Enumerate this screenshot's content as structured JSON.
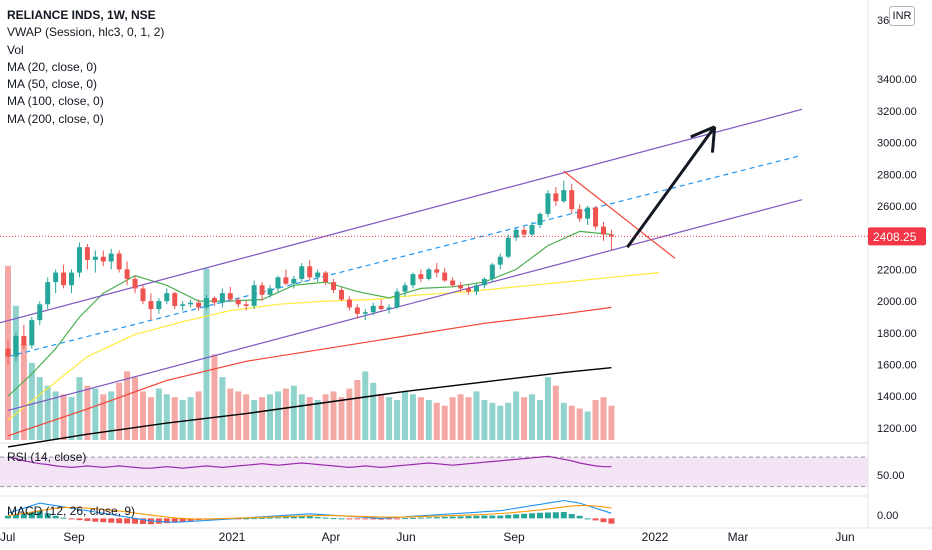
{
  "header": {
    "title": "RELIANCE INDS, 1W, NSE",
    "indicators": [
      "VWAP (Session, hlc3, 0, 1, 2)",
      "Vol",
      "MA (20, close, 0)",
      "MA (50, close, 0)",
      "MA (100, close, 0)",
      "MA (200, close, 0)"
    ],
    "currency": "INR",
    "top_tick_partial": "36"
  },
  "price_axis": {
    "ticks": [
      "3400.00",
      "3200.00",
      "3000.00",
      "2800.00",
      "2600.00",
      "2400.00",
      "2200.00",
      "2000.00",
      "1800.00",
      "1600.00",
      "1400.00",
      "1200.00"
    ],
    "last_price_label": "2408.25"
  },
  "time_axis": {
    "labels": [
      "Jul",
      "Sep",
      "2021",
      "Apr",
      "Jun",
      "Sep",
      "2022",
      "Mar",
      "Jun"
    ]
  },
  "panes": {
    "rsi_label": "RSI (14, close)",
    "rsi_tick": "50.00",
    "macd_label": "MACD (12, 26, close, 9)",
    "macd_tick": "0.00"
  },
  "colors": {
    "up": "#26a69a",
    "down": "#ef5350",
    "up_vol": "#8fd3cc",
    "down_vol": "#f4a8a6",
    "channel": "#7e57c2",
    "channel_mid": "#2196f3",
    "ma20": "#4caf50",
    "ma50": "#ffeb3b",
    "ma100": "#f44336",
    "ma200": "#000000",
    "rsi": "#9c27b0",
    "rsi_band": "#f3e5f5",
    "macd": "#2196f3",
    "signal": "#ff9800",
    "arrow": "#131722",
    "wedge": "#f44336",
    "price_label": "#f23645"
  },
  "chart_data": {
    "type": "candlestick",
    "title": "RELIANCE INDS, 1W, NSE",
    "ylim": [
      1080,
      3700
    ],
    "last_price": 2408.25,
    "candles": [
      [
        1700,
        1750,
        1600,
        1650
      ],
      [
        1650,
        1800,
        1620,
        1780
      ],
      [
        1780,
        1850,
        1700,
        1720
      ],
      [
        1720,
        1900,
        1700,
        1880
      ],
      [
        1880,
        2000,
        1850,
        1980
      ],
      [
        1980,
        2150,
        1950,
        2120
      ],
      [
        2120,
        2200,
        2050,
        2180
      ],
      [
        2180,
        2230,
        2080,
        2100
      ],
      [
        2100,
        2200,
        2050,
        2180
      ],
      [
        2180,
        2370,
        2150,
        2340
      ],
      [
        2340,
        2360,
        2200,
        2260
      ],
      [
        2260,
        2320,
        2180,
        2280
      ],
      [
        2280,
        2320,
        2220,
        2250
      ],
      [
        2250,
        2330,
        2200,
        2300
      ],
      [
        2300,
        2320,
        2180,
        2200
      ],
      [
        2200,
        2250,
        2100,
        2140
      ],
      [
        2140,
        2160,
        2050,
        2080
      ],
      [
        2080,
        2100,
        1980,
        2000
      ],
      [
        2000,
        2050,
        1880,
        1950
      ],
      [
        1950,
        2020,
        1920,
        2000
      ],
      [
        2000,
        2080,
        1980,
        2050
      ],
      [
        2050,
        2060,
        1950,
        1970
      ],
      [
        1970,
        2000,
        1940,
        1980
      ],
      [
        1980,
        2010,
        1960,
        1990
      ],
      [
        1990,
        2010,
        1940,
        1960
      ],
      [
        1960,
        2040,
        1950,
        2020
      ],
      [
        2020,
        2030,
        1970,
        1990
      ],
      [
        1990,
        2080,
        1960,
        2050
      ],
      [
        2050,
        2090,
        2000,
        2010
      ],
      [
        2010,
        2020,
        1960,
        1980
      ],
      [
        1980,
        2000,
        1940,
        1970
      ],
      [
        1970,
        2130,
        1950,
        2100
      ],
      [
        2100,
        2120,
        2000,
        2040
      ],
      [
        2040,
        2100,
        2020,
        2080
      ],
      [
        2080,
        2160,
        2050,
        2150
      ],
      [
        2150,
        2200,
        2100,
        2110
      ],
      [
        2110,
        2160,
        2080,
        2140
      ],
      [
        2140,
        2240,
        2120,
        2220
      ],
      [
        2220,
        2260,
        2130,
        2150
      ],
      [
        2150,
        2200,
        2120,
        2180
      ],
      [
        2180,
        2190,
        2100,
        2120
      ],
      [
        2120,
        2140,
        2050,
        2070
      ],
      [
        2070,
        2090,
        2000,
        2010
      ],
      [
        2010,
        2030,
        1940,
        1960
      ],
      [
        1960,
        1980,
        1890,
        1920
      ],
      [
        1920,
        1950,
        1880,
        1930
      ],
      [
        1930,
        1990,
        1910,
        1970
      ],
      [
        1970,
        2010,
        1940,
        1950
      ],
      [
        1950,
        1980,
        1920,
        1960
      ],
      [
        1960,
        2080,
        1950,
        2060
      ],
      [
        2060,
        2120,
        2030,
        2100
      ],
      [
        2100,
        2180,
        2080,
        2170
      ],
      [
        2170,
        2200,
        2120,
        2140
      ],
      [
        2140,
        2210,
        2130,
        2200
      ],
      [
        2200,
        2240,
        2150,
        2180
      ],
      [
        2180,
        2210,
        2120,
        2130
      ],
      [
        2130,
        2150,
        2090,
        2100
      ],
      [
        2100,
        2120,
        2060,
        2080
      ],
      [
        2080,
        2100,
        2040,
        2060
      ],
      [
        2060,
        2110,
        2040,
        2100
      ],
      [
        2100,
        2150,
        2080,
        2140
      ],
      [
        2140,
        2240,
        2120,
        2230
      ],
      [
        2230,
        2300,
        2200,
        2280
      ],
      [
        2280,
        2420,
        2270,
        2400
      ],
      [
        2400,
        2460,
        2380,
        2450
      ],
      [
        2450,
        2470,
        2400,
        2420
      ],
      [
        2420,
        2500,
        2410,
        2480
      ],
      [
        2480,
        2560,
        2460,
        2550
      ],
      [
        2550,
        2700,
        2530,
        2680
      ],
      [
        2680,
        2720,
        2600,
        2630
      ],
      [
        2630,
        2760,
        2620,
        2700
      ],
      [
        2700,
        2740,
        2550,
        2580
      ],
      [
        2580,
        2610,
        2500,
        2520
      ],
      [
        2520,
        2600,
        2480,
        2590
      ],
      [
        2590,
        2600,
        2450,
        2470
      ],
      [
        2470,
        2500,
        2380,
        2420
      ],
      [
        2420,
        2450,
        2320,
        2408.25
      ]
    ],
    "volumes": [
      1690,
      1550,
      1420,
      1350,
      1300,
      1270,
      1250,
      1240,
      1230,
      1300,
      1270,
      1260,
      1240,
      1250,
      1280,
      1320,
      1300,
      1250,
      1230,
      1260,
      1240,
      1230,
      1220,
      1230,
      1250,
      1680,
      1380,
      1300,
      1260,
      1250,
      1240,
      1220,
      1230,
      1240,
      1250,
      1260,
      1270,
      1240,
      1230,
      1220,
      1240,
      1250,
      1230,
      1260,
      1290,
      1320,
      1280,
      1240,
      1230,
      1220,
      1250,
      1240,
      1230,
      1220,
      1210,
      1200,
      1230,
      1240,
      1230,
      1250,
      1220,
      1210,
      1200,
      1210,
      1250,
      1230,
      1240,
      1220,
      1300,
      1270,
      1210,
      1200,
      1190,
      1180,
      1220,
      1230,
      1200
    ],
    "vol_scale_max": 3000,
    "ma20": [
      [
        0,
        1400
      ],
      [
        3,
        1540
      ],
      [
        6,
        1700
      ],
      [
        9,
        1900
      ],
      [
        12,
        2050
      ],
      [
        16,
        2160
      ],
      [
        20,
        2100
      ],
      [
        24,
        2000
      ],
      [
        28,
        2000
      ],
      [
        32,
        2010
      ],
      [
        36,
        2100
      ],
      [
        40,
        2120
      ],
      [
        44,
        2060
      ],
      [
        48,
        2020
      ],
      [
        52,
        2080
      ],
      [
        56,
        2090
      ],
      [
        60,
        2120
      ],
      [
        64,
        2200
      ],
      [
        68,
        2350
      ],
      [
        72,
        2440
      ],
      [
        76,
        2420
      ]
    ],
    "ma50": [
      [
        0,
        1250
      ],
      [
        5,
        1450
      ],
      [
        10,
        1650
      ],
      [
        16,
        1790
      ],
      [
        22,
        1870
      ],
      [
        28,
        1940
      ],
      [
        34,
        1980
      ],
      [
        40,
        2000
      ],
      [
        46,
        2010
      ],
      [
        52,
        2040
      ],
      [
        58,
        2060
      ],
      [
        64,
        2090
      ],
      [
        70,
        2120
      ],
      [
        76,
        2150
      ],
      [
        82,
        2180
      ]
    ],
    "ma100": [
      [
        0,
        1150
      ],
      [
        10,
        1320
      ],
      [
        20,
        1500
      ],
      [
        30,
        1620
      ],
      [
        40,
        1700
      ],
      [
        50,
        1780
      ],
      [
        60,
        1860
      ],
      [
        70,
        1920
      ],
      [
        76,
        1960
      ]
    ],
    "ma200": [
      [
        0,
        1080
      ],
      [
        10,
        1160
      ],
      [
        20,
        1230
      ],
      [
        30,
        1290
      ],
      [
        40,
        1360
      ],
      [
        50,
        1430
      ],
      [
        60,
        1490
      ],
      [
        70,
        1550
      ],
      [
        76,
        1580
      ]
    ],
    "channel_upper": [
      [
        -2,
        1850
      ],
      [
        100,
        3210
      ]
    ],
    "channel_mid": [
      [
        0,
        1650
      ],
      [
        100,
        2920
      ]
    ],
    "channel_lower": [
      [
        0,
        1310
      ],
      [
        100,
        2640
      ]
    ],
    "wedge_line": [
      [
        70,
        2820
      ],
      [
        84,
        2270
      ]
    ],
    "arrow": [
      [
        78,
        2340
      ],
      [
        89,
        3100
      ]
    ],
    "rsi": [
      70,
      68,
      65,
      63,
      61,
      60,
      58,
      57,
      56,
      57,
      58,
      57,
      56,
      57,
      58,
      57,
      56,
      55,
      55,
      56,
      57,
      56,
      55,
      56,
      57,
      58,
      57,
      56,
      57,
      58,
      59,
      60,
      61,
      60,
      59,
      60,
      61,
      62,
      61,
      60,
      59,
      58,
      57,
      56,
      57,
      58,
      57,
      56,
      57,
      58,
      59,
      60,
      61,
      62,
      61,
      60,
      59,
      60,
      61,
      62,
      63,
      64,
      65,
      66,
      67,
      68,
      69,
      70,
      71,
      69,
      67,
      65,
      62,
      60,
      58,
      57,
      57
    ],
    "rsi_range": [
      20,
      85
    ],
    "macd": [
      2,
      3,
      4,
      5,
      6,
      5.5,
      5,
      4.5,
      4,
      3.5,
      3,
      2.5,
      2,
      1.5,
      1,
      0.5,
      0,
      -0.5,
      -1,
      -1.2,
      -1.4,
      -1.5,
      -1.4,
      -1.2,
      -1,
      -0.8,
      -0.6,
      -0.4,
      -0.2,
      0,
      0.2,
      0.4,
      0.6,
      0.8,
      1,
      1.2,
      1.4,
      1.6,
      1.8,
      1.6,
      1.4,
      1.2,
      1,
      0.8,
      0.6,
      0.4,
      0.2,
      0,
      0.2,
      0.4,
      0.6,
      0.8,
      1,
      1.2,
      1.4,
      1.6,
      1.8,
      2,
      2.2,
      2.4,
      2.6,
      2.8,
      3,
      3.5,
      4,
      4.5,
      5,
      5.5,
      6,
      6.5,
      7,
      6.5,
      6,
      5,
      4,
      3,
      2
    ],
    "signal": [
      1,
      1.5,
      2,
      2.5,
      3,
      3.5,
      4,
      4.2,
      4.3,
      4.2,
      4,
      3.8,
      3.5,
      3.2,
      2.9,
      2.5,
      2.1,
      1.7,
      1.3,
      0.9,
      0.5,
      0.2,
      0,
      -0.2,
      -0.3,
      -0.3,
      -0.2,
      -0.1,
      0,
      0.1,
      0.2,
      0.3,
      0.4,
      0.5,
      0.6,
      0.7,
      0.8,
      0.9,
      1,
      1.1,
      1.1,
      1.1,
      1,
      0.9,
      0.8,
      0.7,
      0.6,
      0.5,
      0.5,
      0.5,
      0.5,
      0.6,
      0.7,
      0.8,
      0.9,
      1,
      1.1,
      1.2,
      1.3,
      1.4,
      1.5,
      1.7,
      1.9,
      2.1,
      2.4,
      2.7,
      3,
      3.3,
      3.7,
      4.1,
      4.5,
      4.8,
      5,
      5,
      4.8,
      4.5,
      4.1
    ],
    "macd_range": [
      -3,
      8
    ]
  }
}
